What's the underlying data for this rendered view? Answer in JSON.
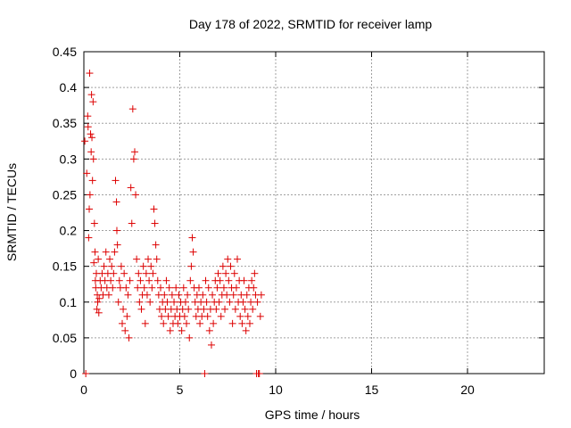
{
  "chart_data": {
    "type": "scatter",
    "title": "Day 178 of 2022, SRMTID for receiver lamp",
    "xlabel": "GPS time / hours",
    "ylabel": "SRMTID / TECUs",
    "xlim": [
      0,
      24
    ],
    "ylim": [
      0,
      0.45
    ],
    "xticks": [
      0,
      5,
      10,
      15,
      20
    ],
    "yticks": [
      0,
      0.05,
      0.1,
      0.15,
      0.2,
      0.25,
      0.3,
      0.35,
      0.4,
      0.45
    ],
    "xtick_labels": [
      "0",
      "5",
      "10",
      "15",
      "20"
    ],
    "ytick_labels": [
      "0",
      "0.05",
      "0.1",
      "0.15",
      "0.2",
      "0.25",
      "0.3",
      "0.35",
      "0.4",
      "0.45"
    ],
    "grid": true,
    "marker": "plus",
    "color": "#dd0000",
    "series": [
      {
        "name": "SRMTID",
        "points": [
          [
            0.05,
            0.325
          ],
          [
            0.1,
            0.0
          ],
          [
            0.15,
            0.28
          ],
          [
            0.2,
            0.36
          ],
          [
            0.22,
            0.345
          ],
          [
            0.25,
            0.19
          ],
          [
            0.28,
            0.23
          ],
          [
            0.3,
            0.42
          ],
          [
            0.32,
            0.25
          ],
          [
            0.35,
            0.335
          ],
          [
            0.38,
            0.31
          ],
          [
            0.4,
            0.39
          ],
          [
            0.42,
            0.33
          ],
          [
            0.45,
            0.27
          ],
          [
            0.48,
            0.38
          ],
          [
            0.5,
            0.3
          ],
          [
            0.52,
            0.155
          ],
          [
            0.55,
            0.21
          ],
          [
            0.58,
            0.17
          ],
          [
            0.6,
            0.13
          ],
          [
            0.62,
            0.12
          ],
          [
            0.65,
            0.14
          ],
          [
            0.68,
            0.09
          ],
          [
            0.7,
            0.11
          ],
          [
            0.72,
            0.1
          ],
          [
            0.75,
            0.16
          ],
          [
            0.78,
            0.085
          ],
          [
            0.8,
            0.105
          ],
          [
            0.85,
            0.13
          ],
          [
            0.9,
            0.12
          ],
          [
            0.95,
            0.14
          ],
          [
            1.0,
            0.11
          ],
          [
            1.05,
            0.15
          ],
          [
            1.1,
            0.13
          ],
          [
            1.15,
            0.17
          ],
          [
            1.2,
            0.12
          ],
          [
            1.25,
            0.14
          ],
          [
            1.3,
            0.11
          ],
          [
            1.35,
            0.16
          ],
          [
            1.4,
            0.13
          ],
          [
            1.45,
            0.15
          ],
          [
            1.5,
            0.12
          ],
          [
            1.55,
            0.14
          ],
          [
            1.6,
            0.17
          ],
          [
            1.65,
            0.27
          ],
          [
            1.7,
            0.24
          ],
          [
            1.72,
            0.2
          ],
          [
            1.75,
            0.18
          ],
          [
            1.8,
            0.1
          ],
          [
            1.85,
            0.13
          ],
          [
            1.9,
            0.12
          ],
          [
            1.95,
            0.15
          ],
          [
            2.0,
            0.07
          ],
          [
            2.05,
            0.09
          ],
          [
            2.1,
            0.14
          ],
          [
            2.15,
            0.06
          ],
          [
            2.2,
            0.12
          ],
          [
            2.25,
            0.08
          ],
          [
            2.3,
            0.11
          ],
          [
            2.35,
            0.05
          ],
          [
            2.4,
            0.13
          ],
          [
            2.45,
            0.26
          ],
          [
            2.5,
            0.21
          ],
          [
            2.55,
            0.37
          ],
          [
            2.6,
            0.3
          ],
          [
            2.65,
            0.31
          ],
          [
            2.7,
            0.25
          ],
          [
            2.75,
            0.16
          ],
          [
            2.8,
            0.12
          ],
          [
            2.85,
            0.14
          ],
          [
            2.9,
            0.1
          ],
          [
            2.95,
            0.13
          ],
          [
            3.0,
            0.09
          ],
          [
            3.05,
            0.11
          ],
          [
            3.1,
            0.15
          ],
          [
            3.15,
            0.12
          ],
          [
            3.2,
            0.07
          ],
          [
            3.25,
            0.14
          ],
          [
            3.3,
            0.11
          ],
          [
            3.35,
            0.16
          ],
          [
            3.4,
            0.13
          ],
          [
            3.45,
            0.1
          ],
          [
            3.5,
            0.15
          ],
          [
            3.55,
            0.12
          ],
          [
            3.6,
            0.14
          ],
          [
            3.65,
            0.23
          ],
          [
            3.7,
            0.21
          ],
          [
            3.75,
            0.18
          ],
          [
            3.8,
            0.16
          ],
          [
            3.85,
            0.13
          ],
          [
            3.9,
            0.11
          ],
          [
            3.95,
            0.09
          ],
          [
            4.0,
            0.12
          ],
          [
            4.05,
            0.08
          ],
          [
            4.1,
            0.1
          ],
          [
            4.15,
            0.07
          ],
          [
            4.2,
            0.11
          ],
          [
            4.25,
            0.09
          ],
          [
            4.3,
            0.13
          ],
          [
            4.35,
            0.1
          ],
          [
            4.4,
            0.08
          ],
          [
            4.45,
            0.12
          ],
          [
            4.5,
            0.06
          ],
          [
            4.55,
            0.09
          ],
          [
            4.6,
            0.11
          ],
          [
            4.65,
            0.07
          ],
          [
            4.7,
            0.1
          ],
          [
            4.75,
            0.08
          ],
          [
            4.8,
            0.12
          ],
          [
            4.85,
            0.09
          ],
          [
            4.9,
            0.07
          ],
          [
            4.95,
            0.11
          ],
          [
            5.0,
            0.08
          ],
          [
            5.05,
            0.1
          ],
          [
            5.1,
            0.06
          ],
          [
            5.15,
            0.09
          ],
          [
            5.2,
            0.12
          ],
          [
            5.25,
            0.08
          ],
          [
            5.3,
            0.1
          ],
          [
            5.35,
            0.07
          ],
          [
            5.4,
            0.11
          ],
          [
            5.45,
            0.09
          ],
          [
            5.5,
            0.05
          ],
          [
            5.55,
            0.13
          ],
          [
            5.6,
            0.15
          ],
          [
            5.65,
            0.19
          ],
          [
            5.7,
            0.17
          ],
          [
            5.75,
            0.12
          ],
          [
            5.8,
            0.1
          ],
          [
            5.85,
            0.08
          ],
          [
            5.9,
            0.11
          ],
          [
            5.95,
            0.09
          ],
          [
            6.0,
            0.12
          ],
          [
            6.05,
            0.07
          ],
          [
            6.1,
            0.1
          ],
          [
            6.15,
            0.08
          ],
          [
            6.2,
            0.11
          ],
          [
            6.25,
            0.09
          ],
          [
            6.3,
            0.0
          ],
          [
            6.35,
            0.13
          ],
          [
            6.4,
            0.1
          ],
          [
            6.45,
            0.08
          ],
          [
            6.5,
            0.12
          ],
          [
            6.55,
            0.06
          ],
          [
            6.6,
            0.09
          ],
          [
            6.65,
            0.04
          ],
          [
            6.7,
            0.11
          ],
          [
            6.75,
            0.07
          ],
          [
            6.8,
            0.1
          ],
          [
            6.85,
            0.13
          ],
          [
            6.9,
            0.09
          ],
          [
            6.95,
            0.12
          ],
          [
            7.0,
            0.14
          ],
          [
            7.05,
            0.1
          ],
          [
            7.1,
            0.13
          ],
          [
            7.15,
            0.08
          ],
          [
            7.2,
            0.11
          ],
          [
            7.25,
            0.15
          ],
          [
            7.3,
            0.12
          ],
          [
            7.35,
            0.09
          ],
          [
            7.4,
            0.14
          ],
          [
            7.45,
            0.11
          ],
          [
            7.5,
            0.16
          ],
          [
            7.55,
            0.13
          ],
          [
            7.6,
            0.1
          ],
          [
            7.65,
            0.15
          ],
          [
            7.7,
            0.12
          ],
          [
            7.75,
            0.07
          ],
          [
            7.8,
            0.11
          ],
          [
            7.85,
            0.14
          ],
          [
            7.9,
            0.09
          ],
          [
            7.95,
            0.12
          ],
          [
            8.0,
            0.16
          ],
          [
            8.05,
            0.1
          ],
          [
            8.1,
            0.13
          ],
          [
            8.15,
            0.08
          ],
          [
            8.2,
            0.11
          ],
          [
            8.25,
            0.07
          ],
          [
            8.3,
            0.1
          ],
          [
            8.35,
            0.13
          ],
          [
            8.4,
            0.09
          ],
          [
            8.45,
            0.06
          ],
          [
            8.5,
            0.11
          ],
          [
            8.55,
            0.08
          ],
          [
            8.6,
            0.12
          ],
          [
            8.65,
            0.07
          ],
          [
            8.7,
            0.1
          ],
          [
            8.75,
            0.13
          ],
          [
            8.8,
            0.09
          ],
          [
            8.85,
            0.12
          ],
          [
            8.9,
            0.14
          ],
          [
            8.95,
            0.11
          ],
          [
            9.0,
            0.0
          ],
          [
            9.05,
            0.1
          ],
          [
            9.1,
            0.0
          ],
          [
            9.15,
            0.0
          ],
          [
            9.2,
            0.08
          ],
          [
            9.25,
            0.11
          ]
        ]
      }
    ]
  }
}
